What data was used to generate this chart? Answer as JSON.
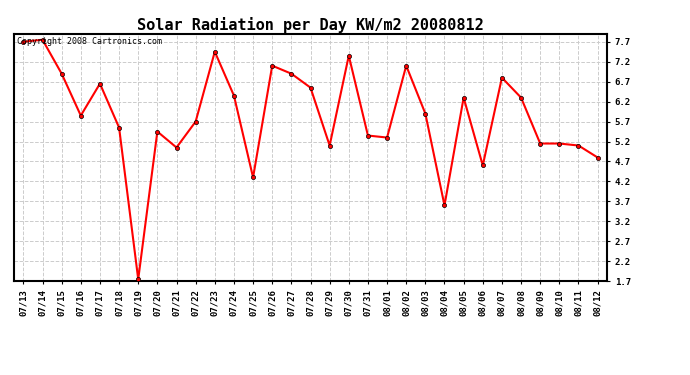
{
  "title": "Solar Radiation per Day KW/m2 20080812",
  "copyright_text": "Copyright 2008 Cartronics.com",
  "dates": [
    "07/13",
    "07/14",
    "07/15",
    "07/16",
    "07/17",
    "07/18",
    "07/19",
    "07/20",
    "07/21",
    "07/22",
    "07/23",
    "07/24",
    "07/25",
    "07/26",
    "07/27",
    "07/28",
    "07/29",
    "07/30",
    "07/31",
    "08/01",
    "08/02",
    "08/03",
    "08/04",
    "08/05",
    "08/06",
    "08/07",
    "08/08",
    "08/09",
    "08/10",
    "08/11",
    "08/12"
  ],
  "values": [
    7.7,
    7.75,
    6.9,
    5.85,
    6.65,
    5.55,
    1.75,
    5.45,
    5.05,
    5.7,
    7.45,
    6.35,
    4.3,
    7.1,
    6.9,
    6.55,
    5.1,
    7.35,
    5.35,
    5.3,
    7.1,
    5.9,
    3.6,
    6.3,
    4.6,
    6.8,
    6.3,
    5.15,
    5.15,
    5.1,
    4.8
  ],
  "line_color": "#ff0000",
  "marker_size": 3,
  "line_width": 1.5,
  "ylim": [
    1.7,
    7.9
  ],
  "yticks": [
    1.7,
    2.2,
    2.7,
    3.2,
    3.7,
    4.2,
    4.7,
    5.2,
    5.7,
    6.2,
    6.7,
    7.2,
    7.7
  ],
  "bg_color": "#ffffff",
  "grid_color": "#cccccc",
  "title_fontsize": 11,
  "tick_fontsize": 6.5,
  "copyright_fontsize": 6
}
